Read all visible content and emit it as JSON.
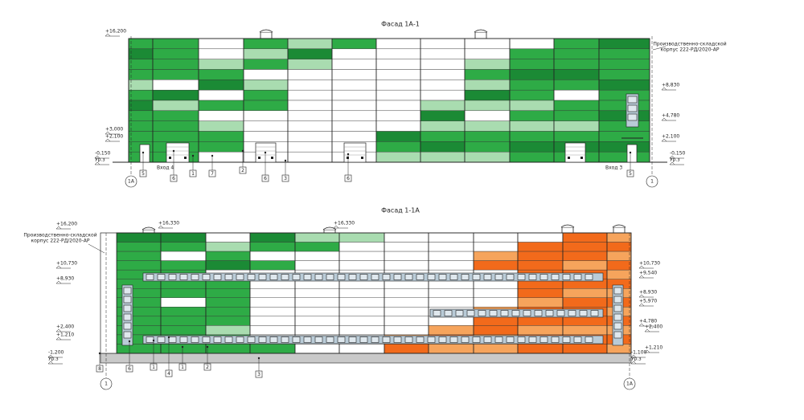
{
  "facades": [
    {
      "title": "Фасад 1А-1",
      "note": [
        "Производственно-складской",
        "корпус 222-РД/2020-АР"
      ],
      "levels_left": [
        "+16,200",
        "+3,000",
        "+2,100",
        "-0,150",
        "Ур.з"
      ],
      "levels_right": [
        "+8,830",
        "+4,780",
        "+2,100",
        "-0,150",
        "Ур.з"
      ],
      "entrances": [
        "Вход 4",
        "Вход 3"
      ],
      "callouts": [
        "5",
        "6",
        "1",
        "7",
        "2",
        "6",
        "3",
        "6",
        "5"
      ],
      "axes": [
        "1А",
        "1"
      ]
    },
    {
      "title": "Фасад 1-1А",
      "note": [
        "Производственно-складской",
        "корпус 222-РД/2020-АР"
      ],
      "levels_top": [
        "+16,330",
        "+16,330"
      ],
      "levels_left": [
        "+16,200",
        "+10,730",
        "+8,930",
        "+2,400",
        "+1,210",
        "-1,200",
        "Ур.з"
      ],
      "levels_right": [
        "+10,730",
        "+9,540",
        "+8,930",
        "+5,970",
        "+4,780",
        "+2,400",
        "+1,210",
        "-1,100",
        "Ур.з"
      ],
      "callouts": [
        "8",
        "6",
        "1",
        "4",
        "1",
        "2",
        "3"
      ],
      "axes": [
        "1",
        "1А"
      ]
    }
  ]
}
